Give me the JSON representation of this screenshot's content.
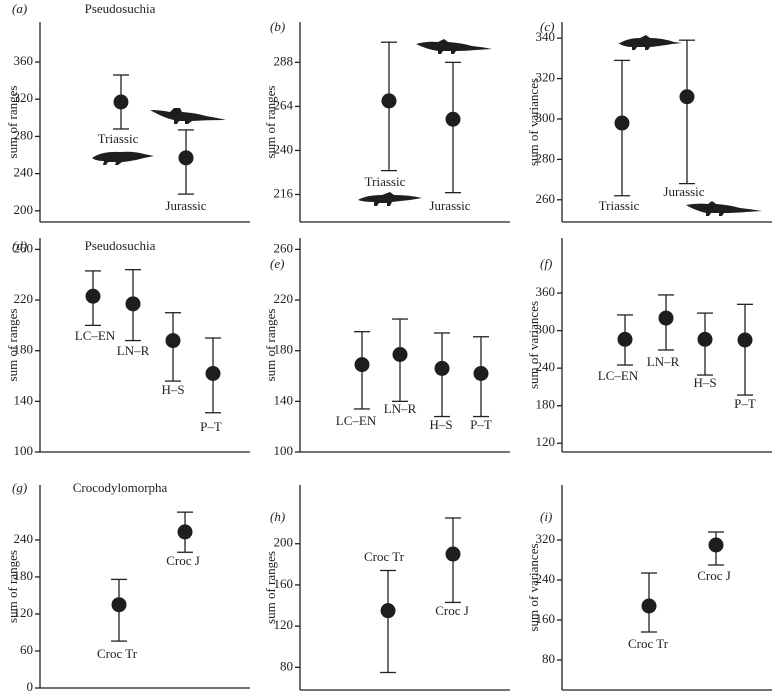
{
  "chart_data": [
    {
      "type": "errorbar",
      "panel": "(a)",
      "title": "Pseudosuchia",
      "ylabel": "sum of ranges",
      "categories": [
        "Triassic",
        "Jurassic"
      ],
      "values": [
        317,
        257
      ],
      "lower": [
        288,
        218
      ],
      "upper": [
        346,
        287
      ],
      "ylim": [
        188,
        403
      ],
      "yticks": [
        200,
        240,
        280,
        320,
        360
      ],
      "color": "#1e1e1e"
    },
    {
      "type": "errorbar",
      "panel": "(b)",
      "ylabel": "sum of ranges",
      "categories": [
        "Triassic",
        "Jurassic"
      ],
      "values": [
        267,
        257
      ],
      "lower": [
        229,
        217
      ],
      "upper": [
        299,
        288
      ],
      "ylim": [
        201,
        310
      ],
      "yticks": [
        216,
        240,
        264,
        288
      ],
      "color": "#1e1e1e"
    },
    {
      "type": "errorbar",
      "panel": "(c)",
      "ylabel": "sum of variances",
      "categories": [
        "Triassic",
        "Jurassic"
      ],
      "values": [
        298,
        311
      ],
      "lower": [
        262,
        268
      ],
      "upper": [
        329,
        339
      ],
      "ylim": [
        249,
        348
      ],
      "yticks": [
        260,
        280,
        300,
        320,
        340
      ],
      "color": "#1e1e1e"
    },
    {
      "type": "errorbar",
      "panel": "(d)",
      "title": "Pseudosuchia",
      "ylabel": "sum of ranges",
      "categories": [
        "LC–EN",
        "LN–R",
        "H–S",
        "P–T"
      ],
      "values": [
        223,
        217,
        188,
        162
      ],
      "lower": [
        200,
        188,
        156,
        131
      ],
      "upper": [
        243,
        244,
        210,
        190
      ],
      "ylim": [
        100,
        269
      ],
      "yticks": [
        100,
        140,
        180,
        220,
        260
      ],
      "color": "#1e1e1e"
    },
    {
      "type": "errorbar",
      "panel": "(e)",
      "ylabel": "sum of ranges",
      "categories": [
        "LC–EN",
        "LN–R",
        "H–S",
        "P–T"
      ],
      "values": [
        169,
        177,
        166,
        162
      ],
      "lower": [
        134,
        140,
        128,
        128
      ],
      "upper": [
        195,
        205,
        194,
        191
      ],
      "ylim": [
        100,
        269
      ],
      "yticks": [
        100,
        140,
        180,
        220,
        260
      ],
      "color": "#1e1e1e"
    },
    {
      "type": "errorbar",
      "panel": "(f)",
      "ylabel": "sum of variances",
      "categories": [
        "LC–EN",
        "LN–R",
        "H–S",
        "P–T"
      ],
      "values": [
        286,
        320,
        286,
        285
      ],
      "lower": [
        245,
        269,
        229,
        197
      ],
      "upper": [
        325,
        357,
        328,
        342
      ],
      "ylim": [
        106,
        448
      ],
      "yticks": [
        120,
        180,
        240,
        300,
        360
      ],
      "color": "#1e1e1e"
    },
    {
      "type": "errorbar",
      "panel": "(g)",
      "title": "Crocodylomorpha",
      "ylabel": "sum of ranges",
      "categories": [
        "Croc Tr",
        "Croc J"
      ],
      "values": [
        135,
        253
      ],
      "lower": [
        76,
        220
      ],
      "upper": [
        176,
        285
      ],
      "ylim": [
        0,
        329
      ],
      "yticks": [
        0,
        60,
        120,
        180,
        240
      ],
      "color": "#1e1e1e"
    },
    {
      "type": "errorbar",
      "panel": "(h)",
      "ylabel": "sum of ranges",
      "categories": [
        "Croc Tr",
        "Croc J"
      ],
      "values": [
        135,
        190
      ],
      "lower": [
        75,
        143
      ],
      "upper": [
        174,
        225
      ],
      "ylim": [
        58,
        257
      ],
      "yticks": [
        80,
        120,
        160,
        200
      ],
      "color": "#1e1e1e"
    },
    {
      "type": "errorbar",
      "panel": "(i)",
      "ylabel": "sum of variances",
      "categories": [
        "Croc Tr",
        "Croc J"
      ],
      "values": [
        188,
        310
      ],
      "lower": [
        136,
        270
      ],
      "upper": [
        254,
        336
      ],
      "ylim": [
        20,
        430
      ],
      "yticks": [
        80,
        160,
        240,
        320
      ],
      "color": "#1e1e1e"
    }
  ]
}
